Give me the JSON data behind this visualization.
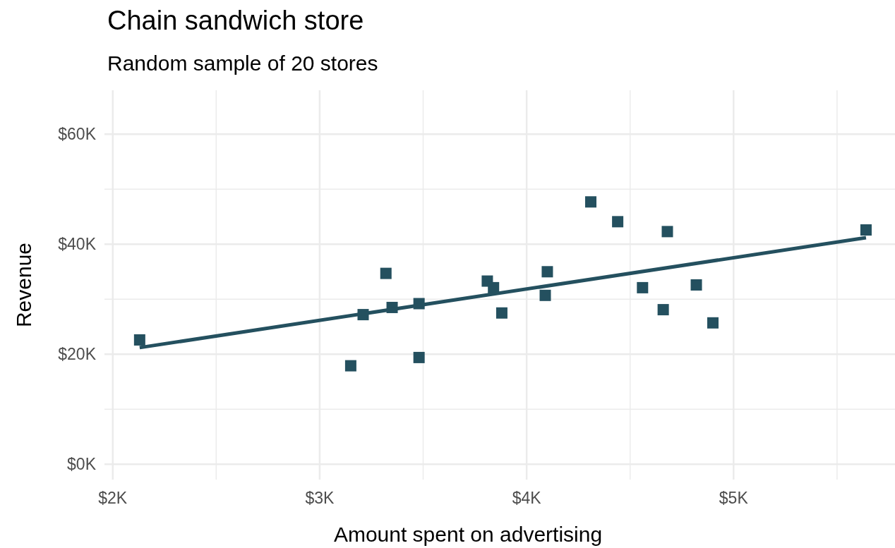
{
  "chart_data": {
    "type": "scatter",
    "title": "Chain sandwich store",
    "subtitle": "Random sample of 20 stores",
    "xlabel": "Amount spent on advertising",
    "ylabel": "Revenue",
    "xlim": [
      1.96,
      5.78
    ],
    "ylim": [
      -2.8,
      68
    ],
    "xticks": [
      {
        "value": 2,
        "label": "$2K"
      },
      {
        "value": 2.5,
        "label": null
      },
      {
        "value": 3,
        "label": "$3K"
      },
      {
        "value": 3.5,
        "label": null
      },
      {
        "value": 4,
        "label": "$4K"
      },
      {
        "value": 4.5,
        "label": null
      },
      {
        "value": 5,
        "label": "$5K"
      },
      {
        "value": 5.5,
        "label": null
      }
    ],
    "yticks": [
      {
        "value": 0,
        "label": "$0K"
      },
      {
        "value": 10,
        "label": null
      },
      {
        "value": 20,
        "label": "$20K"
      },
      {
        "value": 30,
        "label": null
      },
      {
        "value": 40,
        "label": "$40K"
      },
      {
        "value": 50,
        "label": null
      },
      {
        "value": 60,
        "label": "$60K"
      }
    ],
    "grid": true,
    "series": [
      {
        "marker": "square",
        "color": "#24505f",
        "x": [
          2.13,
          3.15,
          3.21,
          3.32,
          3.35,
          3.48,
          3.48,
          3.81,
          3.84,
          3.88,
          4.1,
          4.09,
          4.31,
          4.44,
          4.56,
          4.66,
          4.68,
          4.82,
          4.9,
          5.64
        ],
        "values": [
          22.6,
          17.9,
          27.2,
          34.7,
          28.5,
          29.2,
          19.4,
          33.3,
          32.1,
          27.5,
          35.0,
          30.7,
          47.7,
          44.1,
          32.1,
          28.1,
          42.3,
          32.6,
          25.7,
          42.6
        ]
      },
      {
        "type": "line",
        "marker": "none",
        "color": "#24505f",
        "x": [
          2.13,
          5.64
        ],
        "values": [
          21.2,
          41.2
        ]
      }
    ]
  }
}
